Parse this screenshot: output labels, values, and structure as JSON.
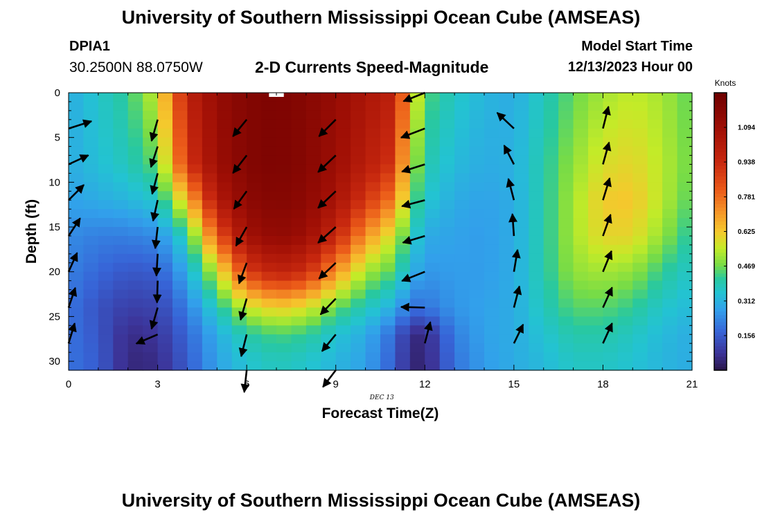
{
  "header": {
    "title": "University of Southern Mississippi Ocean Cube (AMSEAS)",
    "station_id": "DPIA1",
    "coordinates": "30.2500N  88.0750W",
    "start_label": "Model Start Time",
    "start_value": "12/13/2023 Hour 00"
  },
  "footer": {
    "title": "University of Southern Mississippi Ocean Cube (AMSEAS)"
  },
  "colors": {
    "arrow": "#000000",
    "frame": "#000000"
  },
  "chart_data": {
    "type": "heatmap",
    "title": "2-D Currents Speed-Magnitude",
    "xlabel": "Forecast Time(Z)",
    "ylabel": "Depth (ft)",
    "x_annotation": "DEC 13",
    "colorbar_label": "Knots",
    "xlim": [
      0,
      21
    ],
    "ylim": [
      31,
      0
    ],
    "x_ticks": [
      0,
      3,
      6,
      9,
      12,
      15,
      18,
      21
    ],
    "y_ticks": [
      0,
      5,
      10,
      15,
      20,
      25,
      30
    ],
    "colorbar_range": [
      0,
      1.25
    ],
    "colorbar_ticks": [
      0.156,
      0.312,
      0.469,
      0.625,
      0.781,
      0.938,
      1.094
    ],
    "colorbar_tick_labels": [
      "0.156",
      "0.312",
      "0.469",
      "0.625",
      "0.781",
      "0.938",
      "1.094"
    ],
    "time_columns": [
      0,
      0.5,
      1,
      1.5,
      2,
      2.5,
      3,
      3.5,
      4,
      4.5,
      5,
      5.5,
      6,
      6.5,
      7,
      7.5,
      8,
      8.5,
      9,
      9.5,
      10,
      10.5,
      11,
      11.5,
      12,
      12.5,
      13,
      13.5,
      14,
      14.5,
      15,
      15.5,
      16,
      16.5,
      17,
      17.5,
      18,
      18.5,
      19,
      19.5,
      20,
      20.5
    ],
    "column_width_hours": 0.5,
    "depth_rows": [
      0,
      1,
      2,
      3,
      4,
      5,
      6,
      7,
      8,
      9,
      10,
      11,
      12,
      13,
      14,
      15,
      16,
      17,
      18,
      19,
      20,
      21,
      22,
      23,
      24,
      25,
      26,
      27,
      28,
      29,
      30
    ],
    "row_height_ft": 1,
    "speed_keyframes": {
      "hours": [
        0,
        1,
        2,
        3,
        4,
        5,
        6,
        7,
        8,
        9,
        10,
        11,
        11.5,
        12,
        13,
        14,
        15,
        16,
        17,
        18,
        19,
        20,
        21
      ],
      "depths": [
        0,
        8,
        12,
        16,
        20,
        24,
        27,
        30
      ],
      "speeds": [
        [
          0.3,
          0.36,
          0.42,
          0.56,
          0.98,
          1.12,
          1.18,
          1.2,
          1.17,
          1.12,
          1.05,
          0.98,
          0.65,
          0.45,
          0.37,
          0.32,
          0.3,
          0.38,
          0.46,
          0.52,
          0.55,
          0.52,
          0.45
        ],
        [
          0.3,
          0.34,
          0.38,
          0.46,
          0.9,
          1.1,
          1.18,
          1.2,
          1.17,
          1.1,
          1.0,
          0.9,
          0.55,
          0.4,
          0.33,
          0.3,
          0.31,
          0.4,
          0.5,
          0.58,
          0.6,
          0.54,
          0.46
        ],
        [
          0.28,
          0.3,
          0.32,
          0.36,
          0.65,
          1.02,
          1.15,
          1.18,
          1.15,
          1.06,
          0.9,
          0.75,
          0.48,
          0.36,
          0.3,
          0.28,
          0.3,
          0.4,
          0.52,
          0.62,
          0.63,
          0.54,
          0.44
        ],
        [
          0.24,
          0.22,
          0.22,
          0.24,
          0.4,
          0.82,
          1.08,
          1.14,
          1.1,
          0.95,
          0.72,
          0.55,
          0.4,
          0.3,
          0.28,
          0.27,
          0.3,
          0.4,
          0.52,
          0.6,
          0.6,
          0.5,
          0.4
        ],
        [
          0.22,
          0.18,
          0.15,
          0.16,
          0.3,
          0.55,
          0.88,
          0.98,
          0.93,
          0.72,
          0.52,
          0.44,
          0.32,
          0.26,
          0.27,
          0.27,
          0.3,
          0.4,
          0.5,
          0.52,
          0.5,
          0.42,
          0.36
        ],
        [
          0.2,
          0.14,
          0.1,
          0.11,
          0.22,
          0.38,
          0.55,
          0.62,
          0.58,
          0.46,
          0.38,
          0.3,
          0.2,
          0.2,
          0.26,
          0.28,
          0.3,
          0.38,
          0.45,
          0.45,
          0.42,
          0.36,
          0.33
        ],
        [
          0.2,
          0.15,
          0.06,
          0.08,
          0.18,
          0.3,
          0.4,
          0.44,
          0.42,
          0.35,
          0.3,
          0.18,
          0.06,
          0.05,
          0.22,
          0.28,
          0.3,
          0.35,
          0.4,
          0.4,
          0.37,
          0.33,
          0.3
        ],
        [
          0.2,
          0.16,
          0.05,
          0.06,
          0.16,
          0.28,
          0.35,
          0.38,
          0.36,
          0.32,
          0.28,
          0.16,
          0.05,
          0.04,
          0.2,
          0.27,
          0.3,
          0.33,
          0.37,
          0.37,
          0.35,
          0.32,
          0.3
        ]
      ]
    },
    "vector_depths": [
      4,
      8,
      12,
      16,
      20,
      24,
      28
    ],
    "vectors": [
      {
        "hour": 0,
        "depths": [
          0,
          4,
          8,
          12,
          16,
          20,
          24,
          28
        ],
        "dx": [
          0,
          0.75,
          0.65,
          0.5,
          0.38,
          0.28,
          0.22,
          0.2
        ],
        "dy": [
          0,
          0.24,
          0.3,
          0.5,
          0.58,
          0.62,
          0.65,
          0.66
        ]
      },
      {
        "hour": 3,
        "depths": [
          0,
          3,
          6,
          9,
          12,
          15,
          18,
          21,
          24,
          27
        ],
        "dx": [
          0,
          -0.2,
          -0.22,
          -0.18,
          -0.15,
          -0.08,
          -0.04,
          -0.02,
          -0.2,
          -0.7
        ],
        "dy": [
          0,
          -0.7,
          -0.68,
          -0.68,
          -0.68,
          -0.7,
          -0.72,
          -0.72,
          -0.7,
          -0.3
        ]
      },
      {
        "hour": 6,
        "depths": [
          0,
          3,
          7,
          11,
          15,
          19,
          23,
          27,
          31
        ],
        "dx": [
          0,
          -0.45,
          -0.45,
          -0.42,
          -0.35,
          -0.25,
          -0.2,
          -0.18,
          -0.08
        ],
        "dy": [
          0,
          -0.55,
          -0.58,
          -0.58,
          -0.62,
          -0.68,
          -0.7,
          -0.72,
          -0.72
        ]
      },
      {
        "hour": 9,
        "depths": [
          0,
          3,
          7,
          11,
          15,
          19,
          23,
          27,
          31
        ],
        "dx": [
          0,
          -0.55,
          -0.58,
          -0.58,
          -0.58,
          -0.55,
          -0.5,
          -0.45,
          -0.42
        ],
        "dy": [
          0,
          -0.55,
          -0.55,
          -0.55,
          -0.52,
          -0.52,
          -0.52,
          -0.55,
          -0.55
        ]
      },
      {
        "hour": 12,
        "depths": [
          0,
          0,
          4,
          8,
          12,
          16,
          20,
          24,
          28
        ],
        "dx": [
          0,
          -0.7,
          -0.78,
          -0.75,
          -0.75,
          -0.72,
          -0.75,
          -0.78,
          0.18
        ],
        "dy": [
          0,
          -0.28,
          -0.3,
          -0.24,
          -0.2,
          -0.22,
          -0.3,
          0.02,
          0.7
        ]
      },
      {
        "hour": 15,
        "depths": [
          0,
          4,
          8,
          12,
          16,
          20,
          24,
          28
        ],
        "dx": [
          0,
          -0.55,
          -0.32,
          -0.18,
          -0.05,
          0.12,
          0.18,
          0.3
        ],
        "dy": [
          0,
          0.52,
          0.62,
          0.7,
          0.72,
          0.72,
          0.7,
          0.62
        ]
      },
      {
        "hour": 18,
        "depths": [
          0,
          4,
          8,
          12,
          16,
          20,
          24,
          28
        ],
        "dx": [
          0,
          0.18,
          0.2,
          0.22,
          0.25,
          0.28,
          0.3,
          0.3
        ],
        "dy": [
          0,
          0.72,
          0.72,
          0.72,
          0.7,
          0.68,
          0.66,
          0.66
        ]
      }
    ]
  }
}
